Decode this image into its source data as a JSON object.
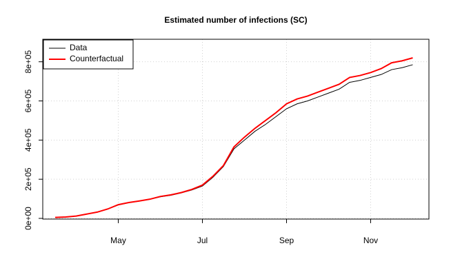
{
  "chart_data": {
    "type": "line",
    "title": "Estimated number of infections (SC)",
    "categories": [
      null,
      null,
      null,
      null,
      null,
      null,
      "May",
      null,
      null,
      null,
      null,
      null,
      null,
      null,
      "Jul",
      null,
      null,
      null,
      null,
      null,
      null,
      null,
      "Sep",
      null,
      null,
      null,
      null,
      null,
      null,
      null,
      "Nov",
      null,
      null,
      null,
      null
    ],
    "series": [
      {
        "name": "Data",
        "color": "#000000",
        "values": [
          5000,
          7000,
          12000,
          22000,
          32000,
          48000,
          68000,
          80000,
          88000,
          97000,
          110000,
          118000,
          130000,
          145000,
          165000,
          210000,
          265000,
          355000,
          400000,
          445000,
          480000,
          520000,
          560000,
          585000,
          600000,
          620000,
          640000,
          660000,
          695000,
          705000,
          720000,
          735000,
          760000,
          770000,
          785000
        ]
      },
      {
        "name": "Counterfactual",
        "color": "#ff0000",
        "values": [
          5000,
          7000,
          12000,
          22000,
          32000,
          48000,
          70000,
          81000,
          89000,
          98000,
          112000,
          120000,
          132000,
          148000,
          170000,
          215000,
          270000,
          365000,
          415000,
          460000,
          500000,
          540000,
          585000,
          610000,
          625000,
          645000,
          665000,
          685000,
          720000,
          730000,
          745000,
          765000,
          795000,
          805000,
          820000
        ]
      }
    ],
    "ylim": [
      -3500,
      915000
    ],
    "yticks": [
      {
        "value": 0,
        "label": "0e+00"
      },
      {
        "value": 200000,
        "label": "2e+05"
      },
      {
        "value": 400000,
        "label": "4e+05"
      },
      {
        "value": 600000,
        "label": "6e+05"
      },
      {
        "value": 800000,
        "label": "8e+05"
      }
    ],
    "grid": true,
    "legend": "top-left"
  }
}
